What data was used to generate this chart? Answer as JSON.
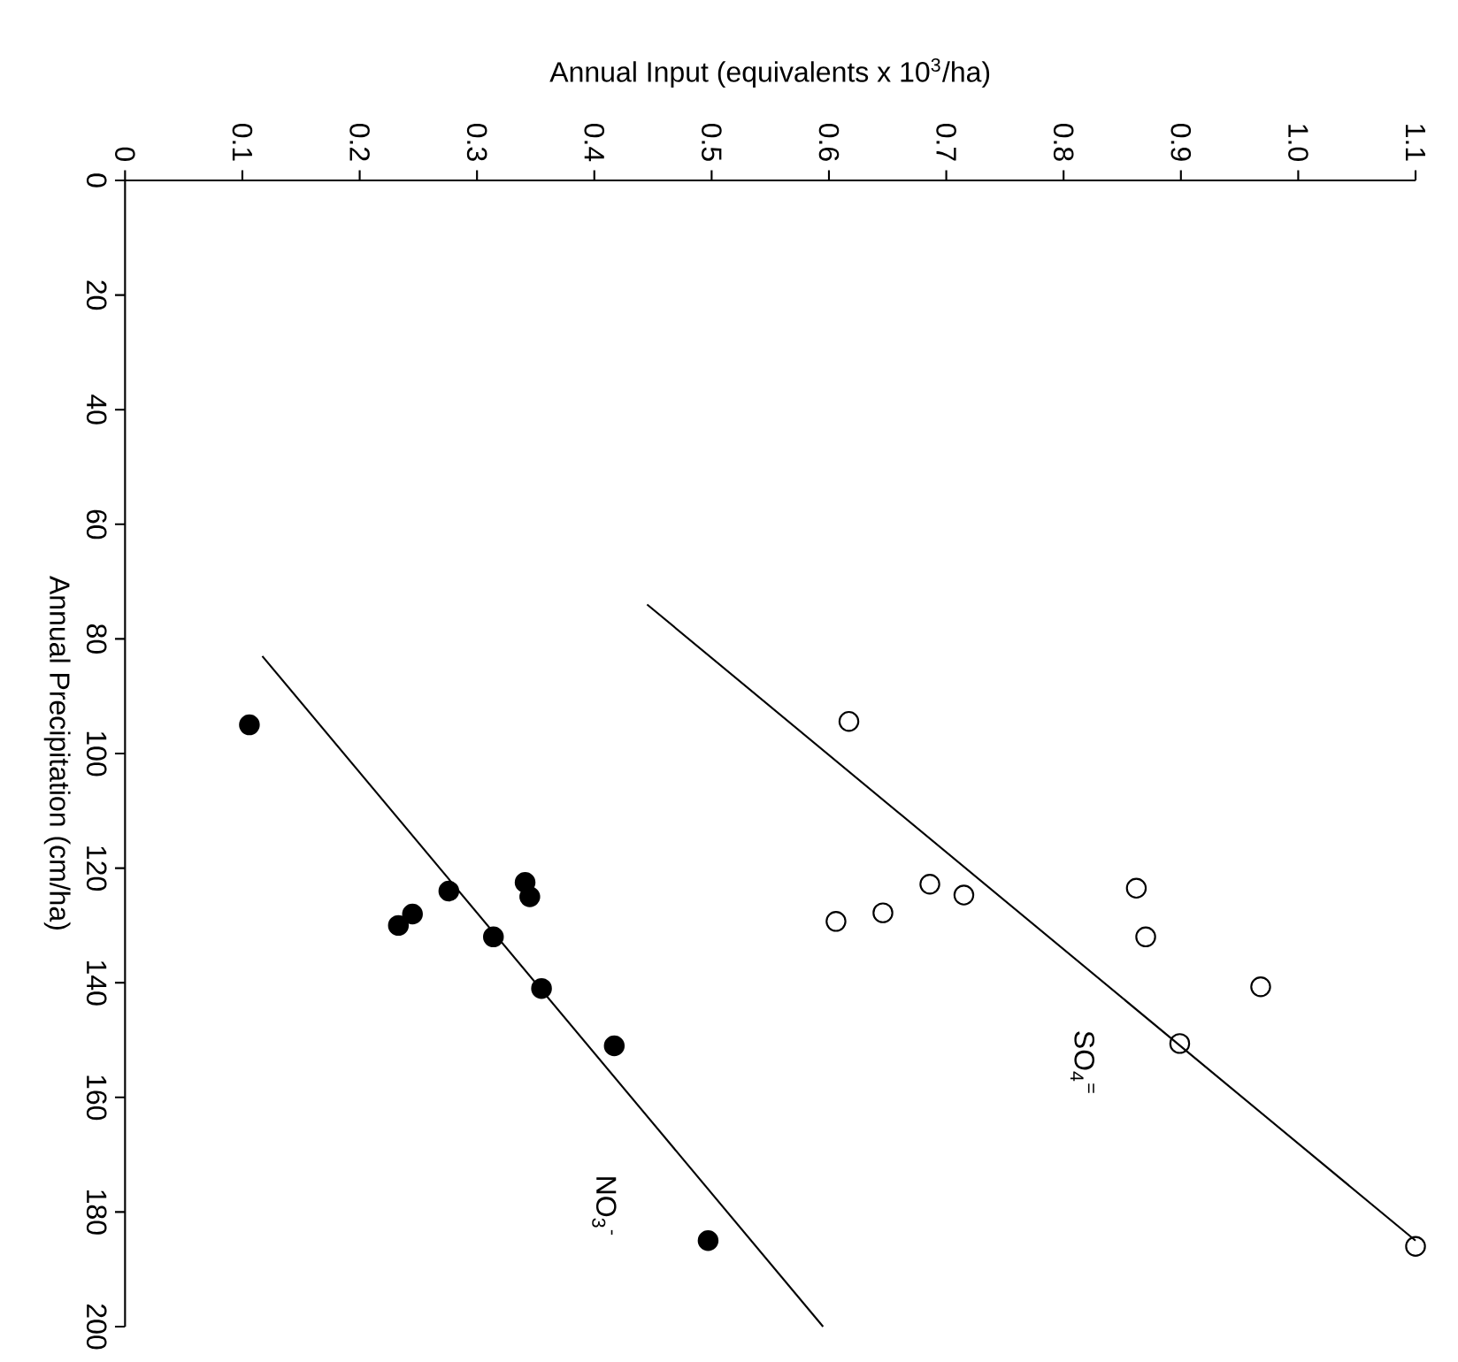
{
  "chart_data": {
    "type": "scatter",
    "xlabel": "Annual Input (equivalents x 10$^{3}$/ha)",
    "ylabel": "Annual Precipitation (cm/ha)",
    "xlim": [
      0,
      1.1
    ],
    "xticks": [
      0,
      0.1,
      0.2,
      0.3,
      0.4,
      0.5,
      0.6,
      0.7,
      0.8,
      0.9,
      {
        "value": 1.0,
        "label": "1.0"
      },
      1.1
    ],
    "ylim": [
      200,
      0
    ],
    "yticks": [
      0,
      20,
      40,
      60,
      80,
      100,
      120,
      140,
      160,
      180,
      200
    ],
    "series": [
      {
        "marker": "circle",
        "color": "#000000",
        "x": [
          0.106,
          0.276,
          0.341,
          0.345,
          0.245,
          0.233,
          0.314,
          0.355,
          0.417,
          0.497
        ],
        "values": [
          95,
          124,
          122.5,
          125,
          128,
          130,
          132,
          141,
          151,
          185
        ]
      },
      {
        "type": "line",
        "name": "NO$_{3}$$^{-}$",
        "marker": "none",
        "color": "#000000",
        "x": [
          0.117,
          0.595
        ],
        "values": [
          83,
          200
        ]
      },
      {
        "marker": "circle-open",
        "color": "#000000",
        "x": [
          0.617,
          0.686,
          0.715,
          0.646,
          0.606,
          0.862,
          0.87,
          0.968,
          0.899,
          1.1
        ],
        "values": [
          94.4,
          122.8,
          124.7,
          127.8,
          129.3,
          123.5,
          132,
          140.7,
          150.6,
          186
        ]
      },
      {
        "type": "line",
        "name": "SO$_{4}$$^{=}$",
        "marker": "none",
        "color": "#000000",
        "x": [
          0.445,
          1.1
        ],
        "values": [
          74,
          185
        ]
      }
    ]
  }
}
